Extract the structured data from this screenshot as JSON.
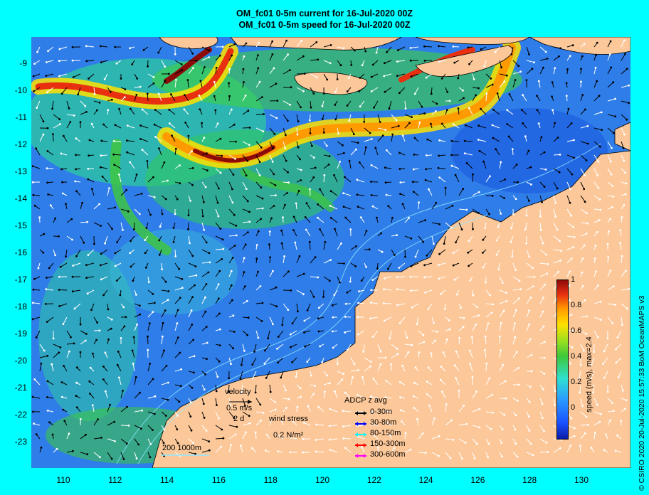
{
  "title": {
    "line1": "OM_fc01 0-5m current for 16-Jul-2020 00Z",
    "line2": "OM_fc01 0-5m speed for 16-Jul-2020 00Z"
  },
  "axes": {
    "lat_labels": [
      "-9",
      "-10",
      "-11",
      "-12",
      "-13",
      "-14",
      "-15",
      "-16",
      "-17",
      "-18",
      "-19",
      "-20",
      "-21",
      "-22",
      "-23"
    ],
    "lon_labels": [
      "110",
      "112",
      "114",
      "116",
      "118",
      "120",
      "122",
      "124",
      "126",
      "128",
      "130"
    ]
  },
  "colorbar": {
    "ticks": [
      "1",
      "0.8",
      "0.6",
      "0.4",
      "0.2",
      "0"
    ],
    "label": "speed (m/s),  max=2.4"
  },
  "legend": {
    "velocity_title": "velocity",
    "velocity_scale": "0.5 m/s",
    "velocity_time": "2 d",
    "wind_title": "wind stress",
    "wind_scale": "0.2 N/m²",
    "adcp_title": "ADCP z avg",
    "adcp_items": [
      {
        "label": "0-30m",
        "color": "#000000"
      },
      {
        "label": "30-80m",
        "color": "#0000ff"
      },
      {
        "label": "80-150m",
        "color": "#00ffff"
      },
      {
        "label": "150-300m",
        "color": "#ff0000"
      },
      {
        "label": "300-600m",
        "color": "#ff00ff"
      }
    ],
    "isobath_label": "200  1000m"
  },
  "credit": "© CSIRO 2020   20-Jul-2020 15:57:33 BoM OceanMAPS v3",
  "colors": {
    "background": "#00ffff",
    "land": "#fcc89a",
    "ocean_low": "#2f7de8",
    "current_high": "#8c0a08"
  }
}
